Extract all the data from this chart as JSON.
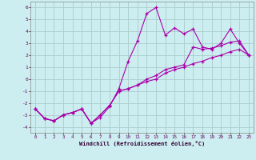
{
  "xlabel": "Windchill (Refroidissement éolien,°C)",
  "xlim": [
    -0.5,
    23.5
  ],
  "ylim": [
    -4.5,
    6.5
  ],
  "yticks": [
    -4,
    -3,
    -2,
    -1,
    0,
    1,
    2,
    3,
    4,
    5,
    6
  ],
  "xticks": [
    0,
    1,
    2,
    3,
    4,
    5,
    6,
    7,
    8,
    9,
    10,
    11,
    12,
    13,
    14,
    15,
    16,
    17,
    18,
    19,
    20,
    21,
    22,
    23
  ],
  "bg_color": "#cceef0",
  "line_color": "#aa00aa",
  "grid_color": "#aacccc",
  "line1_x": [
    0,
    1,
    2,
    3,
    4,
    5,
    6,
    7,
    8,
    9,
    10,
    11,
    12,
    13,
    14,
    15,
    16,
    17,
    18,
    19,
    20,
    21,
    22,
    23
  ],
  "line1_y": [
    -2.5,
    -3.3,
    -3.5,
    -3.0,
    -2.8,
    -2.5,
    -3.7,
    -3.2,
    -2.3,
    -0.8,
    1.5,
    3.2,
    5.5,
    6.0,
    3.7,
    4.3,
    3.8,
    4.2,
    2.7,
    2.5,
    3.0,
    4.2,
    3.0,
    2.0
  ],
  "line2_x": [
    0,
    1,
    2,
    3,
    4,
    5,
    6,
    7,
    8,
    9,
    10,
    11,
    12,
    13,
    14,
    15,
    16,
    17,
    18,
    19,
    20,
    21,
    22,
    23
  ],
  "line2_y": [
    -2.5,
    -3.3,
    -3.5,
    -3.0,
    -2.8,
    -2.5,
    -3.7,
    -3.0,
    -2.2,
    -1.0,
    -0.8,
    -0.5,
    -0.2,
    0.0,
    0.5,
    0.8,
    1.0,
    1.3,
    1.5,
    1.8,
    2.0,
    2.3,
    2.5,
    2.0
  ],
  "line3_x": [
    0,
    1,
    2,
    3,
    4,
    5,
    6,
    7,
    8,
    9,
    10,
    11,
    12,
    13,
    14,
    15,
    16,
    17,
    18,
    19,
    20,
    21,
    22,
    23
  ],
  "line3_y": [
    -2.5,
    -3.3,
    -3.5,
    -3.0,
    -2.8,
    -2.5,
    -3.7,
    -3.0,
    -2.2,
    -1.0,
    -0.8,
    -0.5,
    0.0,
    0.3,
    0.8,
    1.0,
    1.2,
    2.7,
    2.5,
    2.6,
    2.8,
    3.1,
    3.2,
    2.0
  ]
}
